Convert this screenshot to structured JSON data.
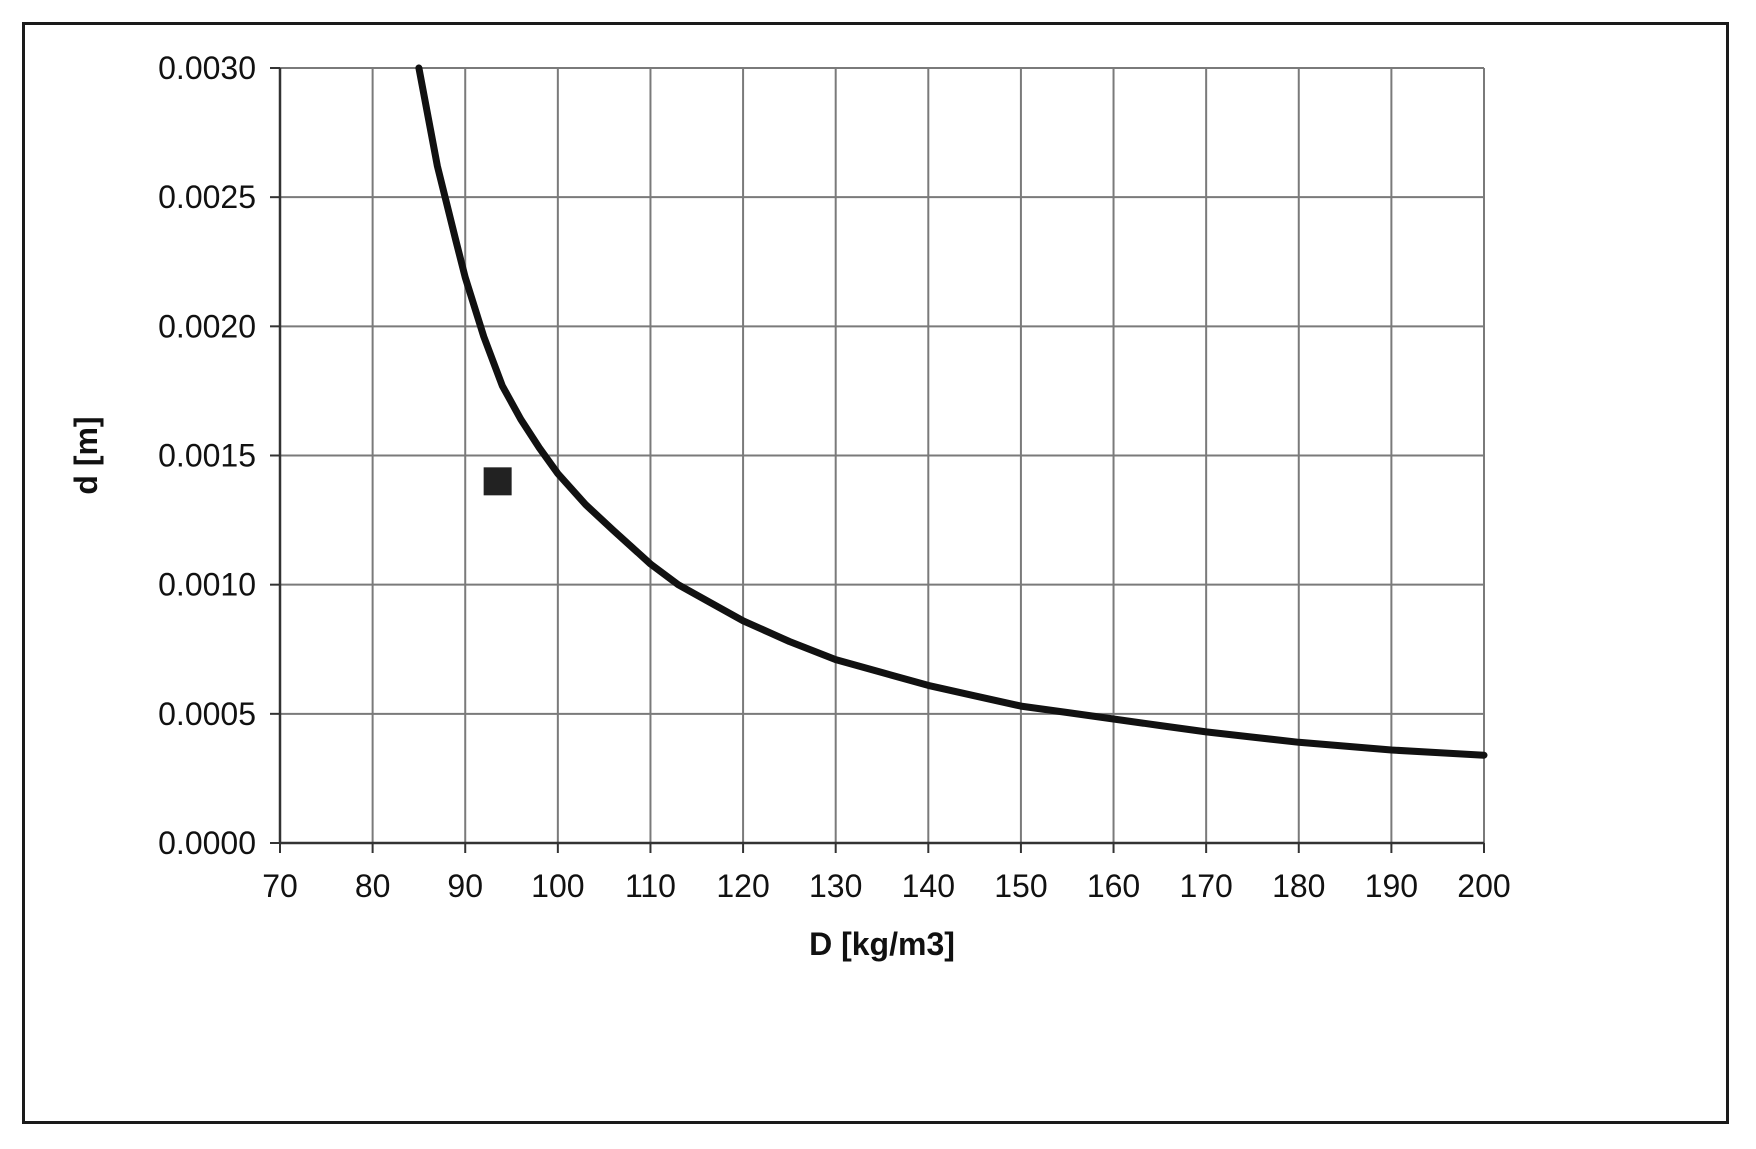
{
  "chart_data": {
    "type": "line",
    "title": "",
    "xlabel": "D [kg/m3]",
    "ylabel": "d [m]",
    "xlim": [
      70,
      200
    ],
    "ylim": [
      0,
      0.003
    ],
    "x_ticks": [
      "70",
      "80",
      "90",
      "100",
      "110",
      "120",
      "130",
      "140",
      "150",
      "160",
      "170",
      "180",
      "190",
      "200"
    ],
    "y_ticks": [
      "0.0000",
      "0.0005",
      "0.0010",
      "0.0015",
      "0.0020",
      "0.0025",
      "0.0030"
    ],
    "grid": true,
    "legend": "none",
    "series": [
      {
        "kind": "line",
        "color": "#111111",
        "x": [
          85,
          87,
          89,
          90,
          92,
          94,
          96,
          98,
          100,
          103,
          106,
          110,
          113,
          116,
          120,
          125,
          130,
          135,
          140,
          145,
          150,
          155,
          160,
          165,
          170,
          175,
          180,
          185,
          190,
          195,
          200
        ],
        "y": [
          0.003,
          0.00262,
          0.00233,
          0.00219,
          0.00196,
          0.00177,
          0.00164,
          0.00153,
          0.00143,
          0.00131,
          0.00121,
          0.00108,
          0.001,
          0.00094,
          0.00086,
          0.00078,
          0.00071,
          0.00066,
          0.00061,
          0.00057,
          0.00053,
          0.000505,
          0.00048,
          0.000455,
          0.00043,
          0.00041,
          0.00039,
          0.000375,
          0.00036,
          0.00035,
          0.00034
        ]
      },
      {
        "kind": "scatter",
        "marker": "square",
        "color": "#222222",
        "x": [
          93.5
        ],
        "y": [
          0.0014
        ]
      }
    ]
  }
}
